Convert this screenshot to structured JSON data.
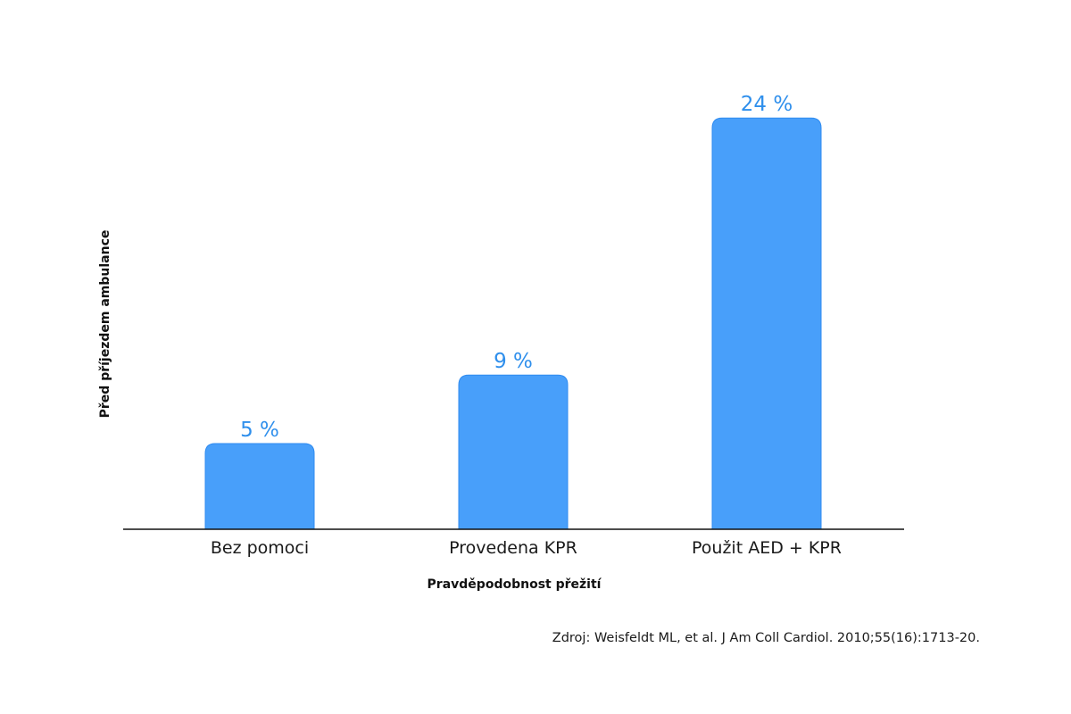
{
  "chart_data": {
    "type": "bar",
    "categories": [
      "Bez pomoci",
      "Provedena KPR",
      "Použit AED + KPR"
    ],
    "values": [
      5,
      9,
      24
    ],
    "value_labels": [
      "5 %",
      "9 %",
      "24 %"
    ],
    "unit": "%",
    "title": "",
    "xlabel": "Pravděpodobnost přežití",
    "ylabel": "Před příjezdem ambulance",
    "ylim": [
      0,
      25
    ],
    "grid": false,
    "legend": "none",
    "bar_color": "#489ffa",
    "value_label_color": "#2f8fec",
    "source": "Zdroj: Weisfeldt ML, et al. J Am Coll Cardiol. 2010;55(16):1713-20."
  }
}
